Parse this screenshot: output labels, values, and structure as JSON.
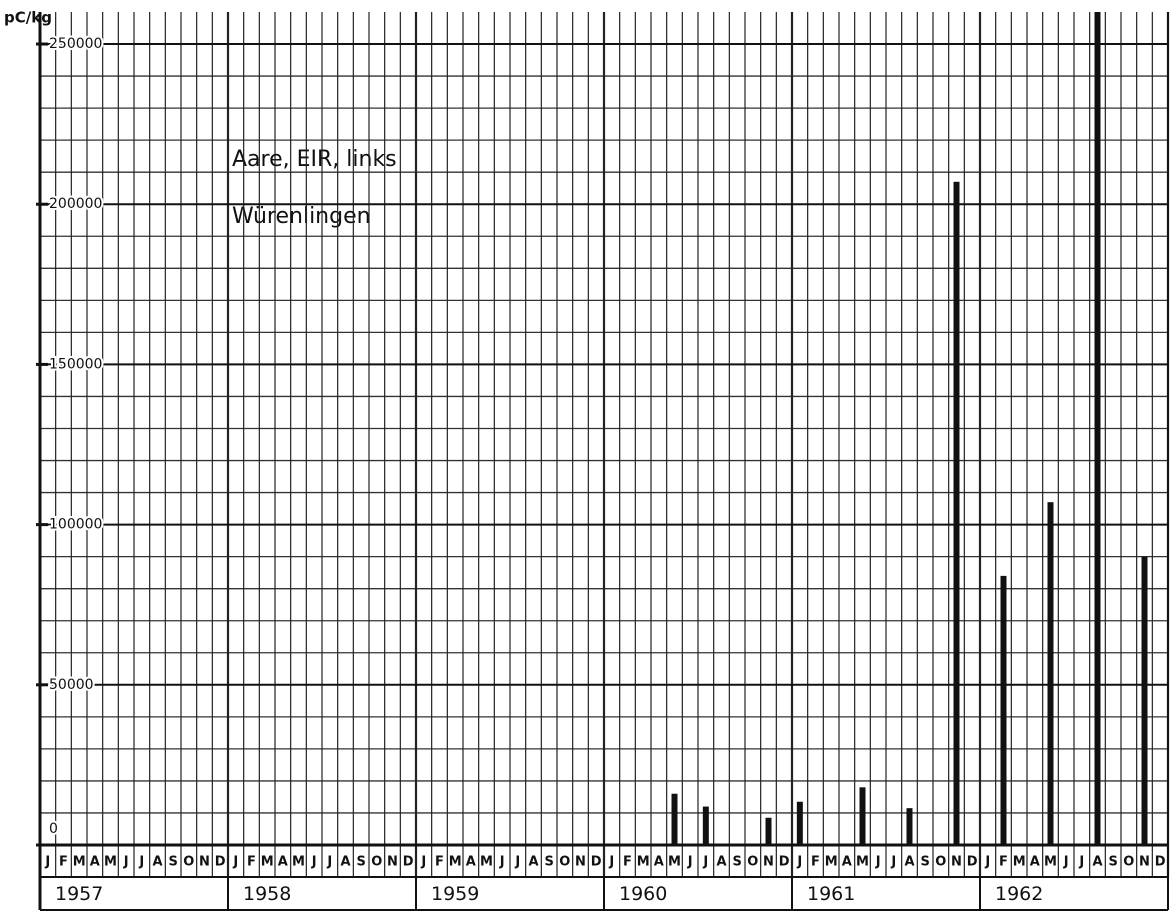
{
  "chart_data": {
    "type": "bar",
    "y_label": "pC/kg",
    "annotations": [
      "Aare, EIR, links",
      "Würenlingen"
    ],
    "x": [
      "1960-05",
      "1960-07",
      "1960-11",
      "1961-01",
      "1961-05",
      "1961-08",
      "1961-11",
      "1962-02",
      "1962-05",
      "1962-08",
      "1962-11"
    ],
    "values": [
      16000,
      12000,
      8500,
      13500,
      18000,
      11500,
      207000,
      84000,
      107000,
      260000,
      90000
    ],
    "color": "#111111",
    "ylim": [
      0,
      260000
    ],
    "yticks": [
      0,
      50000,
      100000,
      150000,
      200000,
      250000
    ],
    "month_labels": [
      "J",
      "F",
      "M",
      "A",
      "M",
      "J",
      "J",
      "A",
      "S",
      "O",
      "N",
      "D"
    ],
    "years": [
      "1957",
      "1958",
      "1959",
      "1960",
      "1961",
      "1962"
    ],
    "grid": true
  }
}
